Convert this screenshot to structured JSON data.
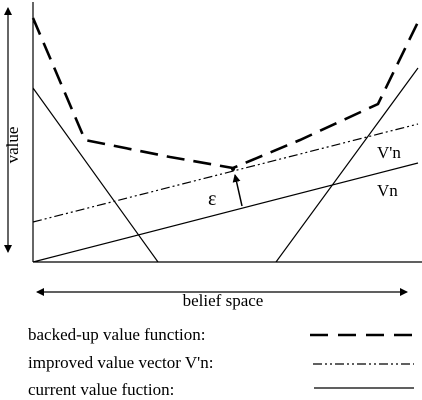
{
  "axes": {
    "y_label": "value",
    "x_label": "belief space"
  },
  "annotations": {
    "epsilon": "ε",
    "improved_vector": "V'n",
    "current_vector": "Vn"
  },
  "legend": [
    {
      "label": "backed-up value function:",
      "style": "dashed"
    },
    {
      "label": "improved value vector V'n:",
      "style": "dash-dot"
    },
    {
      "label": "current value fuction:",
      "style": "solid"
    }
  ],
  "colors": {
    "ink": "#000000",
    "background": "#ffffff"
  }
}
